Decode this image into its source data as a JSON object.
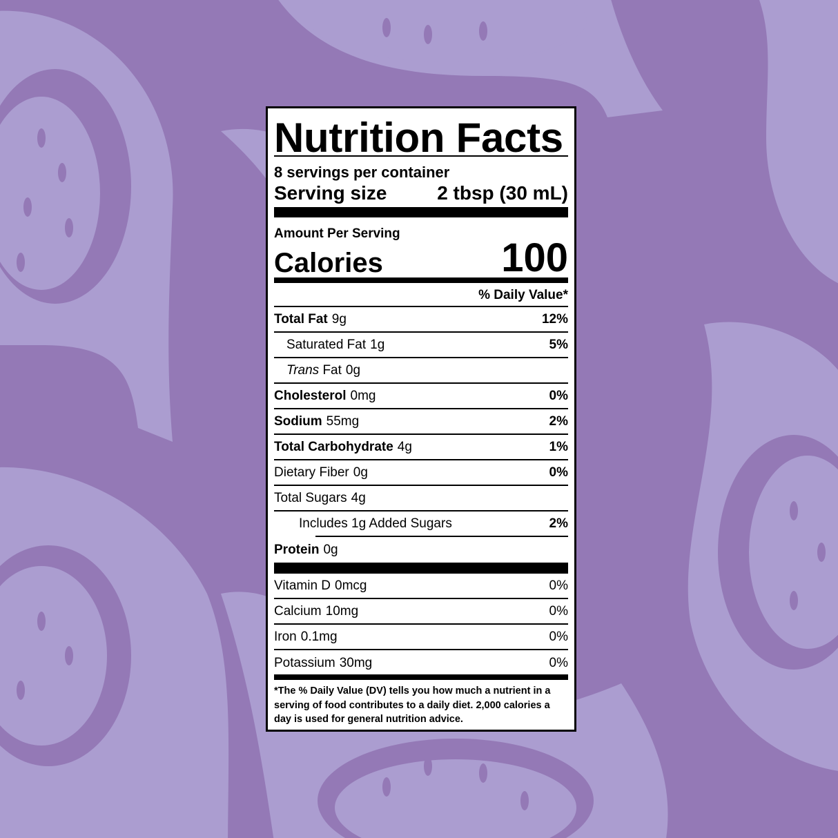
{
  "colors": {
    "background": "#9479b6",
    "fig_light": "#ab9dd0",
    "label_bg": "#ffffff",
    "ink": "#000000"
  },
  "label": {
    "title": "Nutrition Facts",
    "servings": "8 servings per container",
    "serving_size_label": "Serving size",
    "serving_size_value": "2 tbsp (30 mL)",
    "amount_per_serving": "Amount Per Serving",
    "calories_label": "Calories",
    "calories_value": "100",
    "dv_header": "% Daily Value*",
    "nutrients": [
      {
        "name": "Total Fat",
        "amount": "9g",
        "dv": "12%"
      },
      {
        "name": "Saturated Fat",
        "amount": "1g",
        "dv": "5%"
      },
      {
        "name_italic": "Trans",
        "name": "Fat",
        "amount": "0g",
        "dv": ""
      },
      {
        "name": "Cholesterol",
        "amount": "0mg",
        "dv": "0%"
      },
      {
        "name": "Sodium",
        "amount": "55mg",
        "dv": "2%"
      },
      {
        "name": "Total Carbohydrate",
        "amount": "4g",
        "dv": "1%"
      },
      {
        "name": "Dietary Fiber",
        "amount": "0g",
        "dv": "0%"
      },
      {
        "name": "Total Sugars",
        "amount": "4g",
        "dv": ""
      },
      {
        "name": "Includes 1g Added Sugars",
        "amount": "",
        "dv": "2%"
      },
      {
        "name": "Protein",
        "amount": "0g",
        "dv": ""
      }
    ],
    "vitamins": [
      {
        "name": "Vitamin D",
        "amount": "0mcg",
        "dv": "0%"
      },
      {
        "name": "Calcium",
        "amount": "10mg",
        "dv": "0%"
      },
      {
        "name": "Iron",
        "amount": "0.1mg",
        "dv": "0%"
      },
      {
        "name": "Potassium",
        "amount": "30mg",
        "dv": "0%"
      }
    ],
    "footnote": "*The % Daily Value (DV) tells you how much a nutrient in a serving of food contributes to a daily diet. 2,000 calories a day is used for general nutrition advice."
  }
}
